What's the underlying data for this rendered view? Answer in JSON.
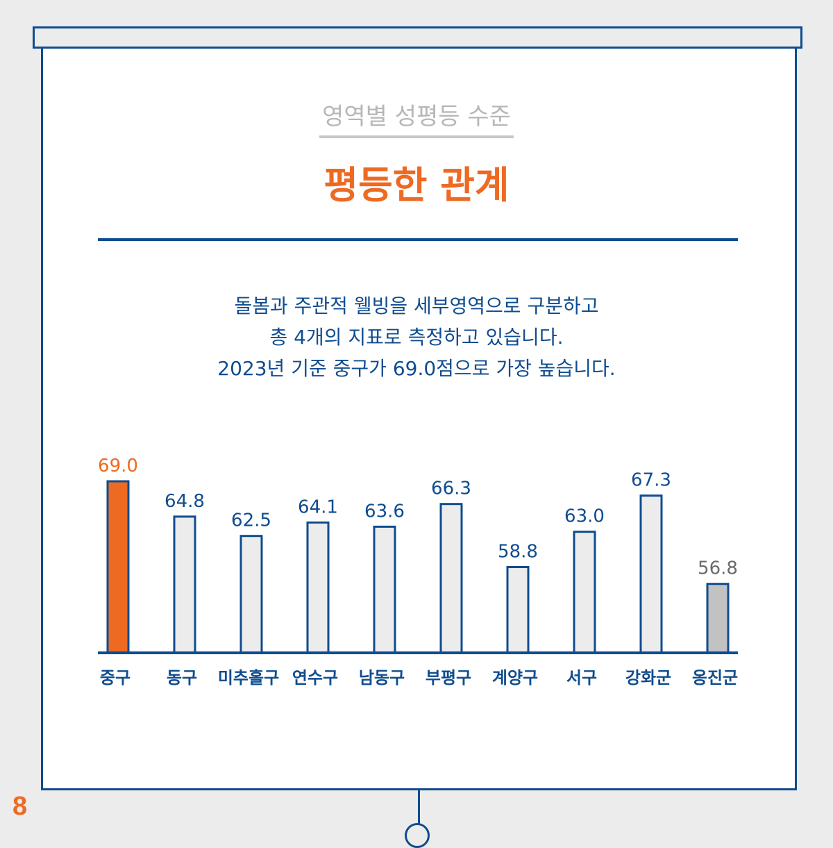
{
  "page_number": "8",
  "header": {
    "subtitle": "영역별 성평등 수준",
    "title": "평등한 관계"
  },
  "description": [
    "돌봄과 주관적 웰빙을 세부영역으로 구분하고",
    "총 4개의 지표로 측정하고 있습니다.",
    "2023년 기준 중구가 69.0점으로 가장 높습니다."
  ],
  "colors": {
    "navy": "#0f4c8f",
    "orange": "#ee6a22",
    "bar_fill": "#ececec",
    "lowest_fill": "#c2c2c2",
    "lowest_label": "#6b6b6b"
  },
  "chart_data": {
    "type": "bar",
    "categories": [
      "중구",
      "동구",
      "미추홀구",
      "연수구",
      "남동구",
      "부평구",
      "계양구",
      "서구",
      "강화군",
      "옹진군"
    ],
    "values": [
      69.0,
      64.8,
      62.5,
      64.1,
      63.6,
      66.3,
      58.8,
      63.0,
      67.3,
      56.8
    ],
    "value_labels": [
      "69.0",
      "64.8",
      "62.5",
      "64.1",
      "63.6",
      "66.3",
      "58.8",
      "63.0",
      "67.3",
      "56.8"
    ],
    "highlight_index": 0,
    "lowest_index": 9,
    "title": "",
    "xlabel": "",
    "ylabel": "",
    "ylim": [
      48.6,
      69.0
    ],
    "grid": false,
    "legend": "none"
  }
}
